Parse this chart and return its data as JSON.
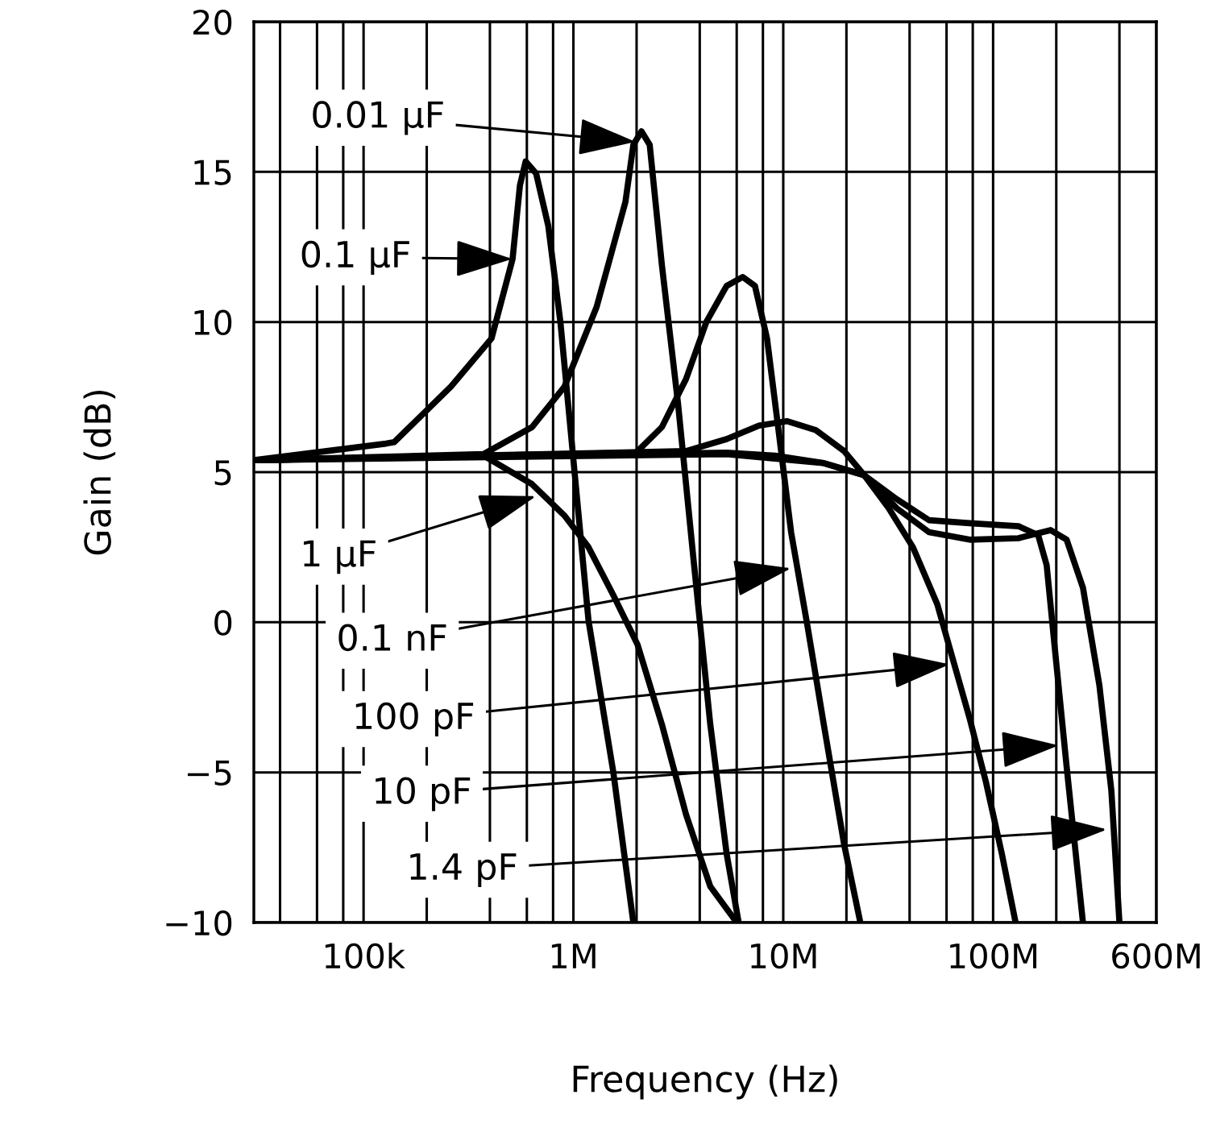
{
  "chart_data": {
    "type": "line",
    "xlabel": "Frequency (Hz)",
    "ylabel": "Gain (dB)",
    "log": "x",
    "grid": true,
    "marker": "none",
    "line_style": "solid",
    "xlim": [
      30000,
      600000000
    ],
    "ylim": [
      -10,
      20
    ],
    "yticks": [
      -10,
      -5,
      0,
      5,
      10,
      15,
      20
    ],
    "xticks": [
      {
        "value": 40000,
        "label": null
      },
      {
        "value": 60000,
        "label": null
      },
      {
        "value": 80000,
        "label": null
      },
      {
        "value": 100000,
        "label": "100k"
      },
      {
        "value": 200000,
        "label": null
      },
      {
        "value": 400000,
        "label": null
      },
      {
        "value": 600000,
        "label": null
      },
      {
        "value": 800000,
        "label": null
      },
      {
        "value": 1000000,
        "label": "1M"
      },
      {
        "value": 2000000,
        "label": null
      },
      {
        "value": 4000000,
        "label": null
      },
      {
        "value": 6000000,
        "label": null
      },
      {
        "value": 8000000,
        "label": null
      },
      {
        "value": 10000000,
        "label": "10M"
      },
      {
        "value": 20000000,
        "label": null
      },
      {
        "value": 40000000,
        "label": null
      },
      {
        "value": 60000000,
        "label": null
      },
      {
        "value": 80000000,
        "label": null
      },
      {
        "value": 100000000,
        "label": "100M"
      },
      {
        "value": 200000000,
        "label": null
      },
      {
        "value": 400000000,
        "label": null
      },
      {
        "value": 600000000,
        "label": "600M"
      }
    ],
    "series": [
      {
        "color": "#000000",
        "x": [
          30000,
          128000,
          140000,
          261000,
          407000,
          513000,
          556000,
          592000,
          664000,
          759000,
          867000,
          991000,
          1180000,
          1550000,
          1930000
        ],
        "values": [
          5.4,
          5.95,
          6.0,
          7.85,
          9.45,
          12.1,
          14.55,
          15.35,
          14.95,
          13.2,
          10.0,
          5.7,
          0.06,
          -5.0,
          -10
        ]
      },
      {
        "color": "#000000",
        "x": [
          30000,
          373000,
          635000,
          907000,
          1290000,
          1770000,
          1930000,
          2110000,
          2310000,
          2640000,
          3150000,
          3760000,
          4490000,
          5370000,
          6130000
        ],
        "values": [
          5.4,
          5.6,
          6.5,
          7.85,
          10.5,
          14.0,
          15.9,
          16.35,
          15.9,
          11.9,
          7.3,
          1.9,
          -3.4,
          -7.7,
          -10
        ]
      },
      {
        "color": "#000000",
        "x": [
          30000,
          373000,
          635000,
          907000,
          1180000,
          1550000,
          2020000,
          2640000,
          3440000,
          4490000,
          5860000,
          6130000
        ],
        "values": [
          5.4,
          5.55,
          4.6,
          3.55,
          2.5,
          0.9,
          -0.74,
          -3.4,
          -6.4,
          -8.8,
          -9.9,
          -10
        ]
      },
      {
        "color": "#000000",
        "x": [
          30000,
          1990000,
          2640000,
          3440000,
          4300000,
          5370000,
          6410000,
          7330000,
          8370000,
          9570000,
          10900000,
          13100000,
          15600000,
          19500000,
          23300000
        ],
        "values": [
          5.4,
          5.65,
          6.5,
          8.1,
          10.0,
          11.2,
          11.5,
          11.2,
          9.45,
          6.2,
          3.0,
          -0.2,
          -3.4,
          -7.4,
          -10
        ]
      },
      {
        "color": "#000000",
        "x": [
          30000,
          3440000,
          5370000,
          7660000,
          10400000,
          14300000,
          19500000,
          24300000,
          31800000,
          41500000,
          54200000,
          64700000,
          77300000,
          92300000,
          110000000,
          128000000
        ],
        "values": [
          5.4,
          5.7,
          6.1,
          6.55,
          6.7,
          6.4,
          5.7,
          4.9,
          3.8,
          2.5,
          0.6,
          -1.3,
          -3.2,
          -5.3,
          -7.7,
          -10
        ]
      },
      {
        "color": "#000000",
        "x": [
          30000,
          5370000,
          9150000,
          15600000,
          24300000,
          34700000,
          49500000,
          77300000,
          132000000,
          164000000,
          180000000,
          196000000,
          224000000,
          268000000
        ],
        "values": [
          5.4,
          5.65,
          5.55,
          5.3,
          4.9,
          4.1,
          3.4,
          3.3,
          3.2,
          2.9,
          1.9,
          -0.74,
          -4.8,
          -10
        ]
      },
      {
        "color": "#000000",
        "x": [
          30000,
          5370000,
          15600000,
          24300000,
          34700000,
          49500000,
          77300000,
          132000000,
          188000000,
          224000000,
          268000000,
          321000000,
          366000000,
          400000000
        ],
        "values": [
          5.4,
          5.6,
          5.3,
          4.9,
          3.8,
          3.0,
          2.75,
          2.8,
          3.07,
          2.75,
          1.15,
          -2.1,
          -5.6,
          -10
        ]
      }
    ],
    "annotations": [
      {
        "text": "0.01 µF",
        "x": 1980000,
        "y": 16.0
      },
      {
        "text": "0.1 µF",
        "x": 513000,
        "y": 12.1
      },
      {
        "text": "1 µF",
        "x": 664000,
        "y": 4.2
      },
      {
        "text": "0.1 nF",
        "x": 10900000,
        "y": 1.8
      },
      {
        "text": "100 pF",
        "x": 62000000,
        "y": -1.4
      },
      {
        "text": "10 pF",
        "x": 205000000,
        "y": -4.1
      },
      {
        "text": "1.4 pF",
        "x": 349000000,
        "y": -6.9
      }
    ]
  }
}
